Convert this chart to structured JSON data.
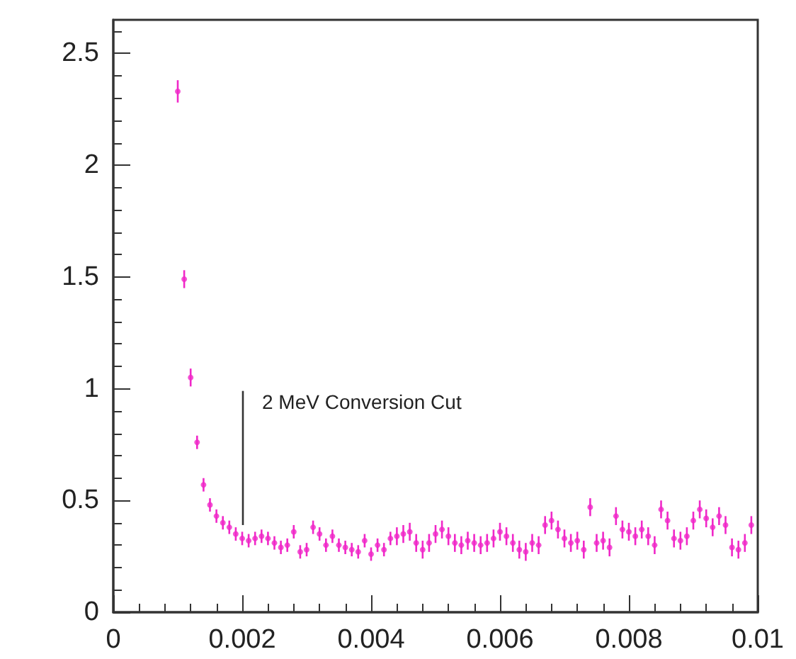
{
  "chart_data": {
    "type": "scatter",
    "x": [
      0.001,
      0.0011,
      0.0012,
      0.0013,
      0.0014,
      0.0015,
      0.0016,
      0.0017,
      0.0018,
      0.0019,
      0.002,
      0.0021,
      0.0022,
      0.0023,
      0.0024,
      0.0025,
      0.0026,
      0.0027,
      0.0028,
      0.0029,
      0.003,
      0.0031,
      0.0032,
      0.0033,
      0.0034,
      0.0035,
      0.0036,
      0.0037,
      0.0038,
      0.0039,
      0.004,
      0.0041,
      0.0042,
      0.0043,
      0.0044,
      0.0045,
      0.0046,
      0.0047,
      0.0048,
      0.0049,
      0.005,
      0.0051,
      0.0052,
      0.0053,
      0.0054,
      0.0055,
      0.0056,
      0.0057,
      0.0058,
      0.0059,
      0.006,
      0.0061,
      0.0062,
      0.0063,
      0.0064,
      0.0065,
      0.0066,
      0.0067,
      0.0068,
      0.0069,
      0.007,
      0.0071,
      0.0072,
      0.0073,
      0.0074,
      0.0075,
      0.0076,
      0.0077,
      0.0078,
      0.0079,
      0.008,
      0.0081,
      0.0082,
      0.0083,
      0.0084,
      0.0085,
      0.0086,
      0.0087,
      0.0088,
      0.0089,
      0.009,
      0.0091,
      0.0092,
      0.0093,
      0.0094,
      0.0095,
      0.0096,
      0.0097,
      0.0098,
      0.0099
    ],
    "values": [
      2.33,
      1.49,
      1.05,
      0.76,
      0.57,
      0.48,
      0.43,
      0.4,
      0.38,
      0.35,
      0.33,
      0.32,
      0.33,
      0.34,
      0.33,
      0.31,
      0.29,
      0.3,
      0.36,
      0.27,
      0.28,
      0.38,
      0.35,
      0.3,
      0.34,
      0.3,
      0.29,
      0.28,
      0.27,
      0.32,
      0.26,
      0.3,
      0.28,
      0.33,
      0.34,
      0.35,
      0.36,
      0.31,
      0.28,
      0.31,
      0.35,
      0.37,
      0.34,
      0.31,
      0.3,
      0.32,
      0.31,
      0.3,
      0.31,
      0.33,
      0.36,
      0.34,
      0.31,
      0.28,
      0.27,
      0.31,
      0.3,
      0.39,
      0.41,
      0.37,
      0.33,
      0.31,
      0.32,
      0.28,
      0.47,
      0.31,
      0.32,
      0.29,
      0.43,
      0.37,
      0.36,
      0.34,
      0.37,
      0.34,
      0.3,
      0.46,
      0.41,
      0.33,
      0.32,
      0.34,
      0.41,
      0.46,
      0.42,
      0.38,
      0.43,
      0.39,
      0.29,
      0.28,
      0.31,
      0.39
    ],
    "errors": [
      0.05,
      0.04,
      0.04,
      0.03,
      0.03,
      0.03,
      0.03,
      0.03,
      0.03,
      0.03,
      0.03,
      0.03,
      0.03,
      0.03,
      0.03,
      0.03,
      0.03,
      0.03,
      0.03,
      0.03,
      0.03,
      0.03,
      0.03,
      0.03,
      0.03,
      0.03,
      0.03,
      0.03,
      0.03,
      0.03,
      0.03,
      0.03,
      0.03,
      0.03,
      0.04,
      0.04,
      0.04,
      0.04,
      0.04,
      0.04,
      0.04,
      0.04,
      0.04,
      0.04,
      0.04,
      0.04,
      0.04,
      0.04,
      0.04,
      0.04,
      0.04,
      0.04,
      0.04,
      0.04,
      0.04,
      0.04,
      0.04,
      0.04,
      0.04,
      0.04,
      0.04,
      0.04,
      0.04,
      0.04,
      0.04,
      0.04,
      0.04,
      0.04,
      0.04,
      0.04,
      0.04,
      0.04,
      0.04,
      0.04,
      0.04,
      0.04,
      0.04,
      0.04,
      0.04,
      0.04,
      0.04,
      0.04,
      0.04,
      0.04,
      0.04,
      0.04,
      0.04,
      0.04,
      0.04,
      0.04
    ],
    "color": "#f028c8",
    "marker": "circle",
    "grid": false,
    "xlim": [
      0,
      0.01
    ],
    "xticks": [
      0,
      0.002,
      0.004,
      0.006,
      0.008,
      0.01
    ],
    "ylim": [
      0,
      2.65
    ],
    "yticks": [
      0,
      0.5,
      1,
      1.5,
      2,
      2.5
    ],
    "annotations": [
      {
        "text": "2 MeV Conversion Cut",
        "x": 0.002,
        "y": 0.39
      }
    ]
  }
}
